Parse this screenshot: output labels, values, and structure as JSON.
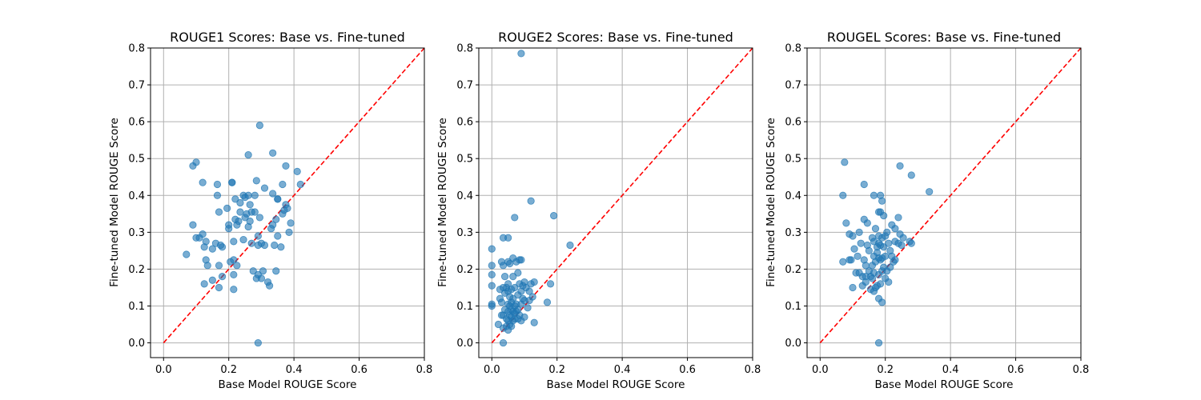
{
  "chart_data": [
    {
      "type": "scatter",
      "title": "ROUGE1 Scores: Base vs. Fine-tuned",
      "xlabel": "Base Model ROUGE Score",
      "ylabel": "Fine-tuned Model ROUGE Score",
      "xlim": [
        -0.04,
        0.8
      ],
      "ylim": [
        -0.04,
        0.8
      ],
      "xticks": [
        "0.0",
        "0.2",
        "0.4",
        "0.6",
        "0.8"
      ],
      "yticks": [
        "0.0",
        "0.1",
        "0.2",
        "0.3",
        "0.4",
        "0.5",
        "0.6",
        "0.7",
        "0.8"
      ],
      "grid": true,
      "reference_line": "y = x",
      "point_color": "#1f77b4",
      "line_color": "#ff0000",
      "points": [
        [
          0.07,
          0.24
        ],
        [
          0.09,
          0.48
        ],
        [
          0.1,
          0.49
        ],
        [
          0.09,
          0.32
        ],
        [
          0.1,
          0.285
        ],
        [
          0.11,
          0.285
        ],
        [
          0.12,
          0.295
        ],
        [
          0.12,
          0.435
        ],
        [
          0.125,
          0.26
        ],
        [
          0.13,
          0.275
        ],
        [
          0.13,
          0.225
        ],
        [
          0.135,
          0.21
        ],
        [
          0.125,
          0.16
        ],
        [
          0.15,
          0.17
        ],
        [
          0.15,
          0.255
        ],
        [
          0.16,
          0.27
        ],
        [
          0.165,
          0.43
        ],
        [
          0.165,
          0.4
        ],
        [
          0.17,
          0.355
        ],
        [
          0.17,
          0.21
        ],
        [
          0.17,
          0.15
        ],
        [
          0.175,
          0.265
        ],
        [
          0.18,
          0.26
        ],
        [
          0.18,
          0.18
        ],
        [
          0.195,
          0.365
        ],
        [
          0.2,
          0.32
        ],
        [
          0.2,
          0.31
        ],
        [
          0.205,
          0.22
        ],
        [
          0.21,
          0.435
        ],
        [
          0.21,
          0.435
        ],
        [
          0.215,
          0.225
        ],
        [
          0.215,
          0.145
        ],
        [
          0.215,
          0.185
        ],
        [
          0.215,
          0.275
        ],
        [
          0.22,
          0.39
        ],
        [
          0.22,
          0.335
        ],
        [
          0.225,
          0.32
        ],
        [
          0.225,
          0.21
        ],
        [
          0.23,
          0.33
        ],
        [
          0.235,
          0.355
        ],
        [
          0.235,
          0.38
        ],
        [
          0.245,
          0.4
        ],
        [
          0.245,
          0.28
        ],
        [
          0.25,
          0.34
        ],
        [
          0.25,
          0.395
        ],
        [
          0.255,
          0.35
        ],
        [
          0.26,
          0.51
        ],
        [
          0.26,
          0.4
        ],
        [
          0.26,
          0.315
        ],
        [
          0.265,
          0.33
        ],
        [
          0.265,
          0.375
        ],
        [
          0.27,
          0.355
        ],
        [
          0.27,
          0.27
        ],
        [
          0.275,
          0.195
        ],
        [
          0.28,
          0.4
        ],
        [
          0.28,
          0.355
        ],
        [
          0.285,
          0.44
        ],
        [
          0.285,
          0.175
        ],
        [
          0.29,
          0.265
        ],
        [
          0.29,
          0.185
        ],
        [
          0.29,
          0.29
        ],
        [
          0.29,
          0.0
        ],
        [
          0.295,
          0.59
        ],
        [
          0.295,
          0.34
        ],
        [
          0.3,
          0.175
        ],
        [
          0.3,
          0.27
        ],
        [
          0.305,
          0.195
        ],
        [
          0.31,
          0.265
        ],
        [
          0.31,
          0.42
        ],
        [
          0.32,
          0.165
        ],
        [
          0.325,
          0.155
        ],
        [
          0.33,
          0.31
        ],
        [
          0.335,
          0.515
        ],
        [
          0.335,
          0.405
        ],
        [
          0.335,
          0.32
        ],
        [
          0.34,
          0.265
        ],
        [
          0.345,
          0.195
        ],
        [
          0.345,
          0.335
        ],
        [
          0.35,
          0.39
        ],
        [
          0.35,
          0.39
        ],
        [
          0.35,
          0.29
        ],
        [
          0.36,
          0.26
        ],
        [
          0.365,
          0.35
        ],
        [
          0.365,
          0.43
        ],
        [
          0.37,
          0.36
        ],
        [
          0.375,
          0.48
        ],
        [
          0.375,
          0.375
        ],
        [
          0.38,
          0.365
        ],
        [
          0.385,
          0.3
        ],
        [
          0.39,
          0.325
        ],
        [
          0.41,
          0.465
        ],
        [
          0.42,
          0.43
        ]
      ]
    },
    {
      "type": "scatter",
      "title": "ROUGE2 Scores: Base vs. Fine-tuned",
      "xlabel": "Base Model ROUGE Score",
      "ylabel": "Fine-tuned Model ROUGE Score",
      "xlim": [
        -0.04,
        0.8
      ],
      "ylim": [
        -0.04,
        0.8
      ],
      "xticks": [
        "0.0",
        "0.2",
        "0.4",
        "0.6",
        "0.8"
      ],
      "yticks": [
        "0.0",
        "0.1",
        "0.2",
        "0.3",
        "0.4",
        "0.5",
        "0.6",
        "0.7",
        "0.8"
      ],
      "grid": true,
      "reference_line": "y = x",
      "point_color": "#1f77b4",
      "line_color": "#ff0000",
      "points": [
        [
          0.0,
          0.255
        ],
        [
          0.0,
          0.21
        ],
        [
          0.0,
          0.185
        ],
        [
          0.0,
          0.155
        ],
        [
          0.0,
          0.105
        ],
        [
          0.0,
          0.1
        ],
        [
          0.02,
          0.05
        ],
        [
          0.025,
          0.145
        ],
        [
          0.025,
          0.12
        ],
        [
          0.03,
          0.22
        ],
        [
          0.03,
          0.075
        ],
        [
          0.03,
          0.11
        ],
        [
          0.035,
          0.285
        ],
        [
          0.035,
          0.21
        ],
        [
          0.035,
          0.15
        ],
        [
          0.035,
          0.075
        ],
        [
          0.035,
          0.04
        ],
        [
          0.035,
          0.0
        ],
        [
          0.04,
          0.18
        ],
        [
          0.04,
          0.135
        ],
        [
          0.04,
          0.09
        ],
        [
          0.045,
          0.15
        ],
        [
          0.045,
          0.065
        ],
        [
          0.045,
          0.045
        ],
        [
          0.05,
          0.285
        ],
        [
          0.05,
          0.22
        ],
        [
          0.05,
          0.16
        ],
        [
          0.05,
          0.14
        ],
        [
          0.05,
          0.105
        ],
        [
          0.05,
          0.085
        ],
        [
          0.05,
          0.06
        ],
        [
          0.05,
          0.035
        ],
        [
          0.055,
          0.215
        ],
        [
          0.055,
          0.125
        ],
        [
          0.055,
          0.1
        ],
        [
          0.055,
          0.075
        ],
        [
          0.055,
          0.05
        ],
        [
          0.06,
          0.145
        ],
        [
          0.06,
          0.11
        ],
        [
          0.06,
          0.09
        ],
        [
          0.06,
          0.07
        ],
        [
          0.06,
          0.045
        ],
        [
          0.065,
          0.23
        ],
        [
          0.065,
          0.18
        ],
        [
          0.065,
          0.12
        ],
        [
          0.065,
          0.085
        ],
        [
          0.065,
          0.06
        ],
        [
          0.07,
          0.34
        ],
        [
          0.07,
          0.15
        ],
        [
          0.07,
          0.1
        ],
        [
          0.07,
          0.08
        ],
        [
          0.07,
          0.065
        ],
        [
          0.075,
          0.22
        ],
        [
          0.075,
          0.105
        ],
        [
          0.075,
          0.085
        ],
        [
          0.08,
          0.19
        ],
        [
          0.08,
          0.13
        ],
        [
          0.08,
          0.09
        ],
        [
          0.08,
          0.065
        ],
        [
          0.085,
          0.225
        ],
        [
          0.085,
          0.16
        ],
        [
          0.085,
          0.075
        ],
        [
          0.09,
          0.785
        ],
        [
          0.09,
          0.225
        ],
        [
          0.09,
          0.14
        ],
        [
          0.09,
          0.105
        ],
        [
          0.09,
          0.06
        ],
        [
          0.095,
          0.155
        ],
        [
          0.095,
          0.12
        ],
        [
          0.1,
          0.165
        ],
        [
          0.1,
          0.115
        ],
        [
          0.1,
          0.07
        ],
        [
          0.105,
          0.15
        ],
        [
          0.11,
          0.095
        ],
        [
          0.115,
          0.14
        ],
        [
          0.115,
          0.115
        ],
        [
          0.12,
          0.385
        ],
        [
          0.12,
          0.16
        ],
        [
          0.125,
          0.125
        ],
        [
          0.13,
          0.165
        ],
        [
          0.13,
          0.055
        ],
        [
          0.17,
          0.11
        ],
        [
          0.18,
          0.16
        ],
        [
          0.19,
          0.345
        ],
        [
          0.24,
          0.265
        ]
      ]
    },
    {
      "type": "scatter",
      "title": "ROUGEL Scores: Base vs. Fine-tuned",
      "xlabel": "Base Model ROUGE Score",
      "ylabel": "Fine-tuned Model ROUGE Score",
      "xlim": [
        -0.04,
        0.8
      ],
      "ylim": [
        -0.04,
        0.8
      ],
      "xticks": [
        "0.0",
        "0.2",
        "0.4",
        "0.6",
        "0.8"
      ],
      "yticks": [
        "0.0",
        "0.1",
        "0.2",
        "0.3",
        "0.4",
        "0.5",
        "0.6",
        "0.7",
        "0.8"
      ],
      "grid": true,
      "reference_line": "y = x",
      "point_color": "#1f77b4",
      "line_color": "#ff0000",
      "points": [
        [
          0.07,
          0.4
        ],
        [
          0.07,
          0.22
        ],
        [
          0.075,
          0.49
        ],
        [
          0.08,
          0.325
        ],
        [
          0.09,
          0.295
        ],
        [
          0.09,
          0.225
        ],
        [
          0.095,
          0.225
        ],
        [
          0.1,
          0.29
        ],
        [
          0.1,
          0.15
        ],
        [
          0.105,
          0.255
        ],
        [
          0.11,
          0.19
        ],
        [
          0.115,
          0.235
        ],
        [
          0.12,
          0.3
        ],
        [
          0.12,
          0.19
        ],
        [
          0.125,
          0.27
        ],
        [
          0.13,
          0.18
        ],
        [
          0.13,
          0.155
        ],
        [
          0.135,
          0.43
        ],
        [
          0.135,
          0.335
        ],
        [
          0.135,
          0.225
        ],
        [
          0.14,
          0.21
        ],
        [
          0.14,
          0.165
        ],
        [
          0.14,
          0.18
        ],
        [
          0.145,
          0.325
        ],
        [
          0.145,
          0.265
        ],
        [
          0.15,
          0.25
        ],
        [
          0.15,
          0.195
        ],
        [
          0.155,
          0.145
        ],
        [
          0.155,
          0.18
        ],
        [
          0.16,
          0.285
        ],
        [
          0.16,
          0.21
        ],
        [
          0.16,
          0.175
        ],
        [
          0.165,
          0.4
        ],
        [
          0.165,
          0.275
        ],
        [
          0.165,
          0.235
        ],
        [
          0.165,
          0.19
        ],
        [
          0.165,
          0.14
        ],
        [
          0.17,
          0.31
        ],
        [
          0.17,
          0.22
        ],
        [
          0.17,
          0.15
        ],
        [
          0.175,
          0.26
        ],
        [
          0.175,
          0.245
        ],
        [
          0.175,
          0.155
        ],
        [
          0.18,
          0.355
        ],
        [
          0.18,
          0.29
        ],
        [
          0.18,
          0.27
        ],
        [
          0.18,
          0.23
        ],
        [
          0.18,
          0.185
        ],
        [
          0.18,
          0.12
        ],
        [
          0.18,
          0.0
        ],
        [
          0.185,
          0.4
        ],
        [
          0.185,
          0.355
        ],
        [
          0.185,
          0.265
        ],
        [
          0.185,
          0.225
        ],
        [
          0.185,
          0.16
        ],
        [
          0.19,
          0.385
        ],
        [
          0.19,
          0.285
        ],
        [
          0.19,
          0.23
        ],
        [
          0.19,
          0.195
        ],
        [
          0.19,
          0.11
        ],
        [
          0.195,
          0.345
        ],
        [
          0.195,
          0.26
        ],
        [
          0.195,
          0.205
        ],
        [
          0.2,
          0.29
        ],
        [
          0.2,
          0.235
        ],
        [
          0.2,
          0.175
        ],
        [
          0.205,
          0.3
        ],
        [
          0.205,
          0.195
        ],
        [
          0.21,
          0.27
        ],
        [
          0.21,
          0.165
        ],
        [
          0.215,
          0.25
        ],
        [
          0.215,
          0.205
        ],
        [
          0.22,
          0.32
        ],
        [
          0.22,
          0.235
        ],
        [
          0.225,
          0.22
        ],
        [
          0.23,
          0.31
        ],
        [
          0.23,
          0.275
        ],
        [
          0.23,
          0.225
        ],
        [
          0.24,
          0.34
        ],
        [
          0.24,
          0.27
        ],
        [
          0.245,
          0.295
        ],
        [
          0.245,
          0.48
        ],
        [
          0.25,
          0.265
        ],
        [
          0.255,
          0.285
        ],
        [
          0.275,
          0.275
        ],
        [
          0.28,
          0.455
        ],
        [
          0.28,
          0.27
        ],
        [
          0.335,
          0.41
        ]
      ]
    }
  ]
}
